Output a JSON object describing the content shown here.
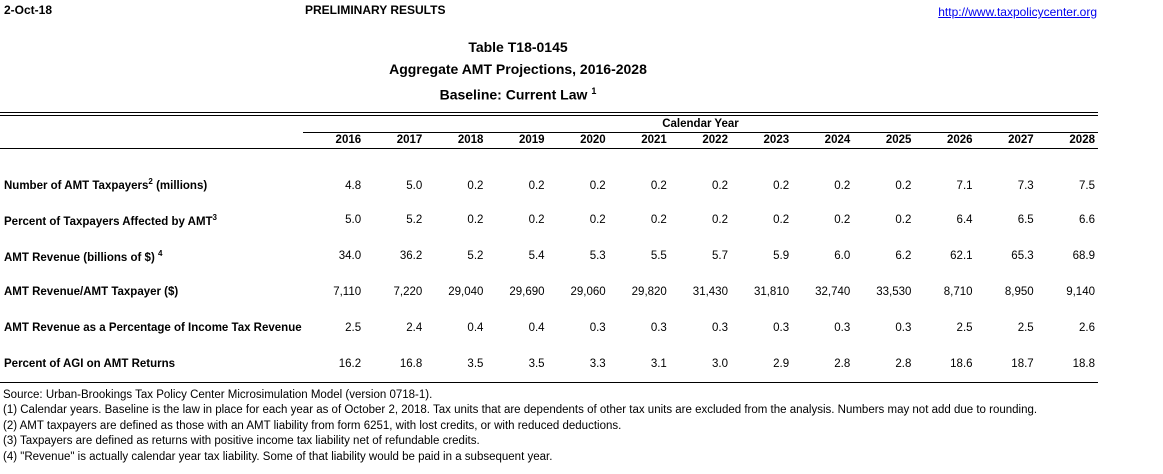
{
  "page_header": {
    "date": "2-Oct-18",
    "status": "PRELIMINARY RESULTS",
    "link": "http://www.taxpolicycenter.org"
  },
  "title": {
    "line1": "Table T18-0145",
    "line2": "Aggregate AMT Projections, 2016-2028",
    "line3": "Baseline: Current Law",
    "line3_sup": "1"
  },
  "table": {
    "group_header": "Calendar Year",
    "years": [
      "2016",
      "2017",
      "2018",
      "2019",
      "2020",
      "2021",
      "2022",
      "2023",
      "2024",
      "2025",
      "2026",
      "2027",
      "2028"
    ],
    "rows": [
      {
        "label_pre": "Number of AMT Taxpayers",
        "label_sup": "2",
        "label_post": " (millions)",
        "values": [
          "4.8",
          "5.0",
          "0.2",
          "0.2",
          "0.2",
          "0.2",
          "0.2",
          "0.2",
          "0.2",
          "0.2",
          "7.1",
          "7.3",
          "7.5"
        ]
      },
      {
        "label_pre": "Percent of Taxpayers Affected by AMT",
        "label_sup": "3",
        "label_post": "",
        "values": [
          "5.0",
          "5.2",
          "0.2",
          "0.2",
          "0.2",
          "0.2",
          "0.2",
          "0.2",
          "0.2",
          "0.2",
          "6.4",
          "6.5",
          "6.6"
        ]
      },
      {
        "label_pre": "AMT Revenue (billions of $) ",
        "label_sup": "4",
        "label_post": "",
        "values": [
          "34.0",
          "36.2",
          "5.2",
          "5.4",
          "5.3",
          "5.5",
          "5.7",
          "5.9",
          "6.0",
          "6.2",
          "62.1",
          "65.3",
          "68.9"
        ]
      },
      {
        "label_pre": "AMT Revenue/AMT Taxpayer ($)",
        "label_sup": "",
        "label_post": "",
        "values": [
          "7,110",
          "7,220",
          "29,040",
          "29,690",
          "29,060",
          "29,820",
          "31,430",
          "31,810",
          "32,740",
          "33,530",
          "8,710",
          "8,950",
          "9,140"
        ]
      },
      {
        "label_pre": "AMT Revenue as a Percentage of Income Tax Revenue",
        "label_sup": "",
        "label_post": "",
        "values": [
          "2.5",
          "2.4",
          "0.4",
          "0.4",
          "0.3",
          "0.3",
          "0.3",
          "0.3",
          "0.3",
          "0.3",
          "2.5",
          "2.5",
          "2.6"
        ]
      },
      {
        "label_pre": "Percent of AGI on AMT Returns",
        "label_sup": "",
        "label_post": "",
        "values": [
          "16.2",
          "16.8",
          "3.5",
          "3.5",
          "3.3",
          "3.1",
          "3.0",
          "2.9",
          "2.8",
          "2.8",
          "18.6",
          "18.7",
          "18.8"
        ]
      }
    ]
  },
  "footnotes": [
    "Source: Urban-Brookings Tax Policy Center Microsimulation Model (version 0718-1).",
    "(1) Calendar years. Baseline is the law in place for each year as of October 2, 2018. Tax units that are dependents of other tax units are excluded from the analysis. Numbers may not add due to rounding.",
    "(2) AMT taxpayers are defined as those with an AMT liability from form 6251, with lost credits, or with reduced deductions.",
    "(3) Taxpayers are defined as returns with positive income tax liability net of refundable credits.",
    "(4) \"Revenue\" is actually calendar year tax liability.  Some of that liability would be paid in a subsequent year."
  ],
  "colors": {
    "link": "#0000EE",
    "text": "#000000",
    "background": "#FFFFFF"
  }
}
